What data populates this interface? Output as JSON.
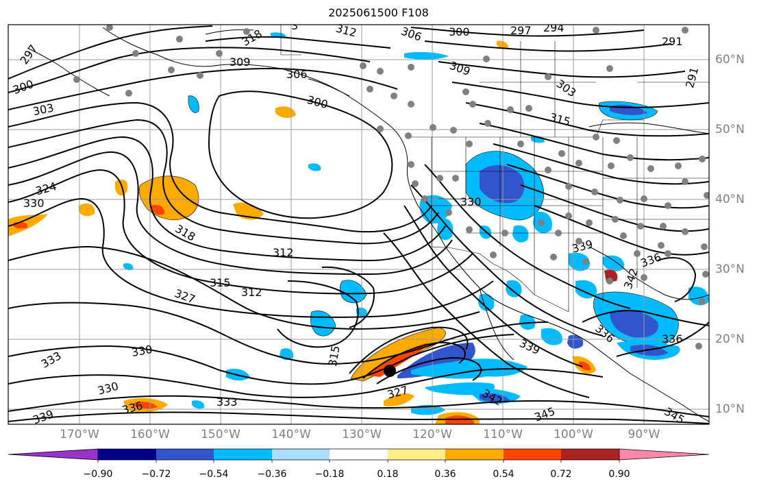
{
  "title": "2025061500 F108",
  "map": {
    "longitude_labels": [
      "170°W",
      "160°W",
      "150°W",
      "140°W",
      "130°W",
      "120°W",
      "110°W",
      "100°W",
      "90°W"
    ],
    "latitude_labels": [
      "60°N",
      "50°N",
      "40°N",
      "30°N",
      "20°N",
      "10°N"
    ],
    "contour_labels": [
      "297",
      "300",
      "303",
      "309",
      "306",
      "312",
      "318",
      "306",
      "300",
      "297",
      "294",
      "291",
      "291",
      "309",
      "303",
      "315",
      "300",
      "324",
      "330",
      "318",
      "312",
      "315",
      "312",
      "327",
      "330",
      "333",
      "330",
      "336",
      "339",
      "333",
      "315",
      "327",
      "345",
      "342",
      "345",
      "339",
      "336",
      "336",
      "330",
      "339",
      "336",
      "342",
      "3"
    ],
    "storm_marker": "black-dot"
  },
  "colorbar": {
    "ticks": [
      "−0.90",
      "−0.72",
      "−0.54",
      "−0.36",
      "−0.18",
      "0.18",
      "0.36",
      "0.54",
      "0.72",
      "0.90"
    ],
    "colors": [
      "#9933cc",
      "#000088",
      "#3355cc",
      "#00bbff",
      "#aaddff",
      "#ffffff",
      "#ffee88",
      "#ffaa00",
      "#ff4400",
      "#aa2222",
      "#ff88aa"
    ]
  }
}
